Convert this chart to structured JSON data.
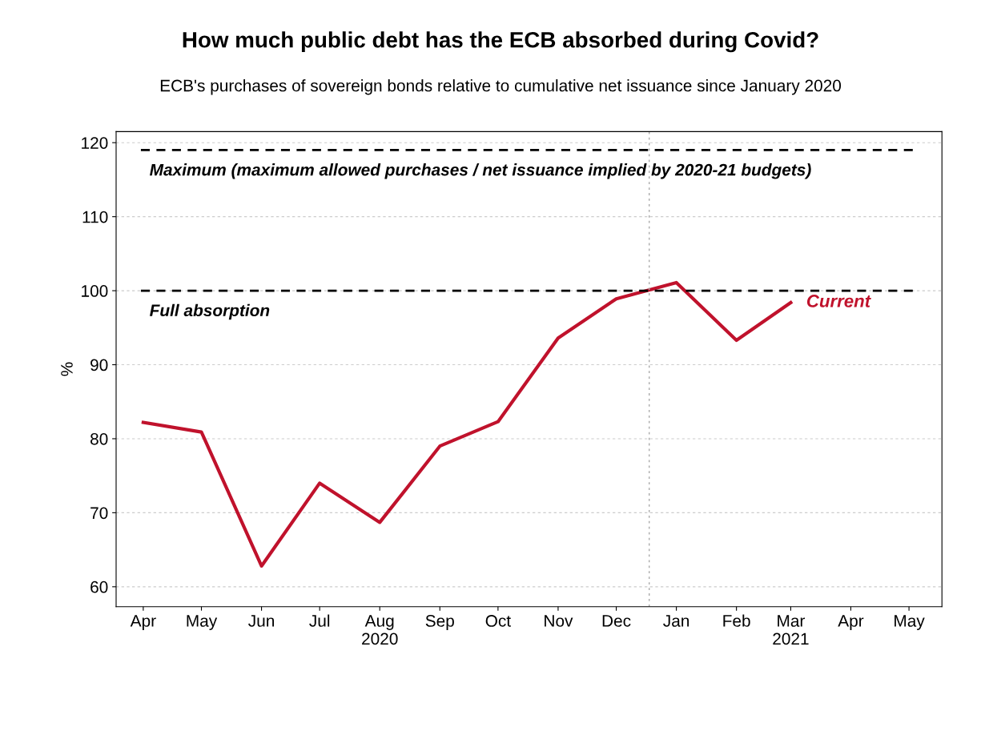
{
  "chart_data": {
    "type": "line",
    "title": "How much public debt has the ECB absorbed during Covid?",
    "subtitle": "ECB's purchases of sovereign bonds relative to cumulative net issuance since January 2020",
    "ylabel": "%",
    "x": [
      "2020-04-15",
      "2020-05-15",
      "2020-06-15",
      "2020-07-15",
      "2020-08-15",
      "2020-09-15",
      "2020-10-15",
      "2020-11-15",
      "2020-12-15",
      "2021-01-15",
      "2021-02-15",
      "2021-03-15"
    ],
    "series": [
      {
        "name": "Current",
        "color": "#c0122c",
        "values": [
          82.2,
          80.9,
          62.8,
          74.0,
          68.7,
          79.0,
          82.3,
          93.6,
          98.9,
          101.1,
          93.3,
          98.4
        ]
      }
    ],
    "xlim": [
      "2020-04-01",
      "2021-06-01"
    ],
    "xticks": [
      {
        "value": "2020-04-15",
        "label": "Apr"
      },
      {
        "value": "2020-05-15",
        "label": "May"
      },
      {
        "value": "2020-06-15",
        "label": "Jun"
      },
      {
        "value": "2020-07-15",
        "label": "Jul"
      },
      {
        "value": "2020-08-15",
        "label": "Aug\n2020"
      },
      {
        "value": "2020-09-15",
        "label": "Sep"
      },
      {
        "value": "2020-10-15",
        "label": "Oct"
      },
      {
        "value": "2020-11-15",
        "label": "Nov"
      },
      {
        "value": "2020-12-15",
        "label": "Dec"
      },
      {
        "value": "2021-01-15",
        "label": "Jan"
      },
      {
        "value": "2021-02-15",
        "label": "Feb"
      },
      {
        "value": "2021-03-15",
        "label": "Mar\n2021"
      },
      {
        "value": "2021-04-15",
        "label": "Apr"
      },
      {
        "value": "2021-05-15",
        "label": "May"
      }
    ],
    "ylim": [
      57.3,
      121.5
    ],
    "yticks": [
      60,
      70,
      80,
      90,
      100,
      110,
      120
    ],
    "grid": "y",
    "legend": false,
    "marker": "none",
    "line_style": "solid",
    "ref_lines": [
      {
        "axis": "y",
        "value": 119,
        "label": "Maximum (maximum allowed purchases / net issuance implied by 2020-21 budgets)",
        "color": "#000000",
        "line_style": "dashed"
      },
      {
        "axis": "y",
        "value": 100,
        "label": "Full absorption",
        "color": "#000000",
        "line_style": "dashed"
      },
      {
        "axis": "x",
        "value": "2021-01-01",
        "color": "#aaaaaa",
        "line_style": "dotted"
      }
    ]
  }
}
